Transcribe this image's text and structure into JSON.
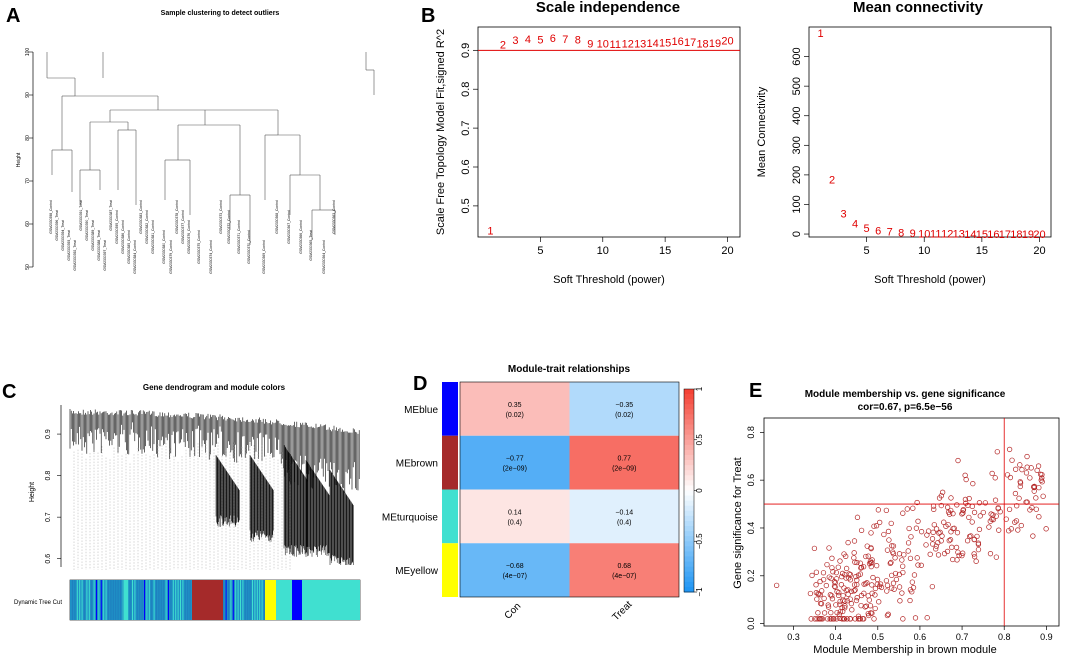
{
  "panel_labels": {
    "A": "A",
    "B": "B",
    "C": "C",
    "D": "D",
    "E": "E"
  },
  "chart_data": [
    {
      "id": "A",
      "type": "dendrogram",
      "title": "Sample clustering to detect outliers",
      "ylabel": "Height",
      "ylim": [
        50,
        100
      ],
      "yticks": [
        50,
        60,
        70,
        80,
        90,
        100
      ],
      "leaf_labels": [
        "GSM2330398_Control",
        "GSM2330396_Treat",
        "GSM2330394_Treat",
        "GSM2330393_Treat",
        "GSM2330392_Treat",
        "GSM2330391_Treat",
        "GSM2330390_Treat",
        "GSM2330389_Treat",
        "GSM2330388_Treat",
        "GSM2330397_Treat",
        "GSM2330387_Treat",
        "GSM2330395_Control",
        "GSM2330386_Control",
        "GSM2330385_Control",
        "GSM2330384_Control",
        "GSM2330383_Control",
        "GSM2330382_Control",
        "GSM2330381_Control",
        "GSM2330380_Control",
        "GSM2330379_Control",
        "GSM2330378_Control",
        "GSM2330377_Control",
        "GSM2330376_Control",
        "GSM2330375_Control",
        "GSM2330374_Control",
        "GSM2330373_Control",
        "GSM2330372_Control",
        "GSM2330371_Control",
        "GSM2330370_Control",
        "GSM2330369_Control",
        "GSM2330368_Control",
        "GSM2330367_Control",
        "GSM2330366_Control",
        "GSM2330365_Treat",
        "GSM2330364_Control",
        "GSM2330363_Control"
      ]
    },
    {
      "id": "B1",
      "type": "scatter",
      "title": "Scale independence",
      "xlabel": "Soft Threshold (power)",
      "ylabel": "Scale Free Topology Model Fit,signed R^2",
      "xlim": [
        0,
        21
      ],
      "ylim": [
        0.42,
        0.96
      ],
      "xticks": [
        5,
        10,
        15,
        20
      ],
      "yticks": [
        0.5,
        0.6,
        0.7,
        0.8,
        0.9
      ],
      "hline": 0.9,
      "x": [
        1,
        2,
        3,
        4,
        5,
        6,
        7,
        8,
        9,
        10,
        11,
        12,
        13,
        14,
        15,
        16,
        17,
        18,
        19,
        20
      ],
      "y": [
        0.437,
        0.915,
        0.926,
        0.929,
        0.928,
        0.932,
        0.929,
        0.928,
        0.917,
        0.918,
        0.916,
        0.918,
        0.918,
        0.919,
        0.92,
        0.924,
        0.922,
        0.918,
        0.919,
        0.925
      ],
      "point_labels": [
        "1",
        "2",
        "3",
        "4",
        "5",
        "6",
        "7",
        "8",
        "9",
        "10",
        "11",
        "12",
        "13",
        "14",
        "15",
        "16",
        "17",
        "18",
        "19",
        "20"
      ]
    },
    {
      "id": "B2",
      "type": "scatter",
      "title": "Mean connectivity",
      "xlabel": "Soft Threshold (power)",
      "ylabel": "Mean Connectivity",
      "xlim": [
        0,
        21
      ],
      "ylim": [
        -10,
        700
      ],
      "xticks": [
        5,
        10,
        15,
        20
      ],
      "yticks": [
        0,
        100,
        200,
        300,
        400,
        500,
        600
      ],
      "x": [
        1,
        2,
        3,
        4,
        5,
        6,
        7,
        8,
        9,
        10,
        11,
        12,
        13,
        14,
        15,
        16,
        17,
        18,
        19,
        20
      ],
      "y": [
        680,
        185,
        70,
        35,
        20,
        12,
        8,
        5,
        3,
        2,
        1,
        1,
        1,
        0,
        0,
        0,
        0,
        0,
        0,
        0
      ],
      "point_labels": [
        "1",
        "2",
        "3",
        "4",
        "5",
        "6",
        "7",
        "8",
        "9",
        "10",
        "11",
        "12",
        "13",
        "14",
        "15",
        "16",
        "17",
        "18",
        "19",
        "20"
      ]
    },
    {
      "id": "C",
      "type": "dendrogram",
      "title": "Gene dendrogram and module colors",
      "ylabel": "Height",
      "ylim": [
        0.58,
        0.97
      ],
      "yticks": [
        0.6,
        0.7,
        0.8,
        0.9
      ],
      "color_bar_label": "Dynamic Tree Cut",
      "module_colors": [
        "turquoise",
        "brown",
        "yellow",
        "blue"
      ]
    },
    {
      "id": "D",
      "type": "heatmap",
      "title": "Module-trait relationships",
      "rows": [
        "MEblue",
        "MEbrown",
        "MEturquoise",
        "MEyellow"
      ],
      "row_colors": [
        "#0000ff",
        "#a52a2a",
        "#40e0d0",
        "#ffff00"
      ],
      "columns": [
        "Con",
        "Treat"
      ],
      "values": [
        [
          0.35,
          -0.35
        ],
        [
          -0.77,
          0.77
        ],
        [
          0.14,
          -0.14
        ],
        [
          -0.68,
          0.68
        ]
      ],
      "cell_text": [
        [
          "0.35",
          "−0.35"
        ],
        [
          "−0.77",
          "0.77"
        ],
        [
          "0.14",
          "−0.14"
        ],
        [
          "−0.68",
          "0.68"
        ]
      ],
      "pvalues": [
        [
          "(0.02)",
          "(0.02)"
        ],
        [
          "(2e−09)",
          "(2e−09)"
        ],
        [
          "(0.4)",
          "(0.4)"
        ],
        [
          "(4e−07)",
          "(4e−07)"
        ]
      ],
      "legend_ticks": [
        "1",
        "0.5",
        "0",
        "−0.5",
        "−1"
      ],
      "vmin": -1,
      "vmax": 1
    },
    {
      "id": "E",
      "type": "scatter",
      "title": "Module membership vs. gene significance",
      "subtitle": "cor=0.67, p=6.5e−56",
      "xlabel": "Module Membership in brown module",
      "ylabel": "Gene significance for Treat",
      "xlim": [
        0.23,
        0.93
      ],
      "ylim": [
        -0.01,
        0.86
      ],
      "xticks": [
        0.3,
        0.4,
        0.5,
        0.6,
        0.7,
        0.8,
        0.9
      ],
      "yticks": [
        0.0,
        0.2,
        0.4,
        0.6,
        0.8
      ],
      "xtick_labels": [
        "0.3",
        "0.4",
        "0.5",
        "0.6",
        "0.7",
        "0.8",
        "0.9"
      ],
      "ytick_labels": [
        "0.0",
        "0.2",
        "0.4",
        "0.6",
        "0.8"
      ],
      "vline": 0.8,
      "hline": 0.5,
      "point_color": "#b22222",
      "n_points": 380,
      "cor": 0.67
    }
  ]
}
